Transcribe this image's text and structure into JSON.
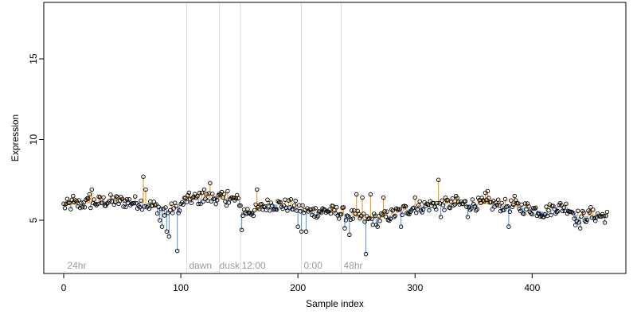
{
  "chart_data": {
    "type": "scatter",
    "title": "",
    "xlabel": "Sample index",
    "ylabel": "Expression",
    "xlim": [
      -17,
      480
    ],
    "ylim": [
      1.7,
      18.5
    ],
    "xticks": [
      0,
      100,
      200,
      300,
      400
    ],
    "yticks": [
      5,
      10,
      15
    ],
    "baseline_n": 465,
    "colors": {
      "above": "#f0a030",
      "below": "#6f9fd8",
      "point_stroke": "#000000",
      "divider": "#dcdcdc"
    },
    "phase_lines": [
      105,
      133,
      151,
      203,
      237
    ],
    "phase_labels": [
      {
        "text": "24hr",
        "x": 3
      },
      {
        "text": "dawn",
        "x": 107
      },
      {
        "text": "dusk",
        "x": 133
      },
      {
        "text": "12:00",
        "x": 152
      },
      {
        "text": "0:00",
        "x": 205
      },
      {
        "text": "48hr",
        "x": 239
      }
    ],
    "baseline": [
      [
        0,
        5.9
      ],
      [
        40,
        6.2
      ],
      [
        65,
        6.1
      ],
      [
        80,
        5.8
      ],
      [
        90,
        5.6
      ],
      [
        100,
        5.9
      ],
      [
        105,
        6.3
      ],
      [
        130,
        6.4
      ],
      [
        150,
        6.2
      ],
      [
        152,
        5.5
      ],
      [
        165,
        5.6
      ],
      [
        175,
        6.0
      ],
      [
        195,
        5.9
      ],
      [
        210,
        5.5
      ],
      [
        225,
        5.6
      ],
      [
        240,
        5.4
      ],
      [
        260,
        5.0
      ],
      [
        275,
        5.2
      ],
      [
        290,
        5.6
      ],
      [
        300,
        5.8
      ],
      [
        320,
        6.0
      ],
      [
        340,
        6.0
      ],
      [
        360,
        6.0
      ],
      [
        380,
        5.9
      ],
      [
        400,
        5.7
      ],
      [
        410,
        5.5
      ],
      [
        420,
        5.8
      ],
      [
        430,
        5.8
      ],
      [
        440,
        5.2
      ],
      [
        455,
        5.3
      ],
      [
        465,
        5.2
      ]
    ],
    "outliers": [
      [
        8,
        6.5
      ],
      [
        17,
        6.1
      ],
      [
        22,
        6.6
      ],
      [
        24,
        6.9
      ],
      [
        68,
        7.7
      ],
      [
        70,
        6.9
      ],
      [
        82,
        5.0
      ],
      [
        84,
        4.6
      ],
      [
        86,
        5.3
      ],
      [
        88,
        4.3
      ],
      [
        90,
        4.0
      ],
      [
        97,
        3.1
      ],
      [
        99,
        5.6
      ],
      [
        118,
        6.7
      ],
      [
        120,
        6.9
      ],
      [
        125,
        7.3
      ],
      [
        140,
        6.8
      ],
      [
        152,
        4.4
      ],
      [
        165,
        6.9
      ],
      [
        200,
        4.6
      ],
      [
        203,
        4.3
      ],
      [
        207,
        4.3
      ],
      [
        213,
        5.7
      ],
      [
        240,
        4.5
      ],
      [
        244,
        4.1
      ],
      [
        250,
        6.6
      ],
      [
        255,
        6.4
      ],
      [
        258,
        2.9
      ],
      [
        262,
        6.6
      ],
      [
        268,
        4.6
      ],
      [
        273,
        6.4
      ],
      [
        288,
        4.6
      ],
      [
        300,
        6.4
      ],
      [
        320,
        7.5
      ],
      [
        322,
        5.2
      ],
      [
        335,
        6.5
      ],
      [
        345,
        5.2
      ],
      [
        360,
        6.7
      ],
      [
        362,
        6.8
      ],
      [
        380,
        4.6
      ],
      [
        385,
        6.5
      ],
      [
        410,
        5.2
      ],
      [
        437,
        4.7
      ],
      [
        441,
        4.5
      ],
      [
        450,
        5.8
      ]
    ]
  }
}
